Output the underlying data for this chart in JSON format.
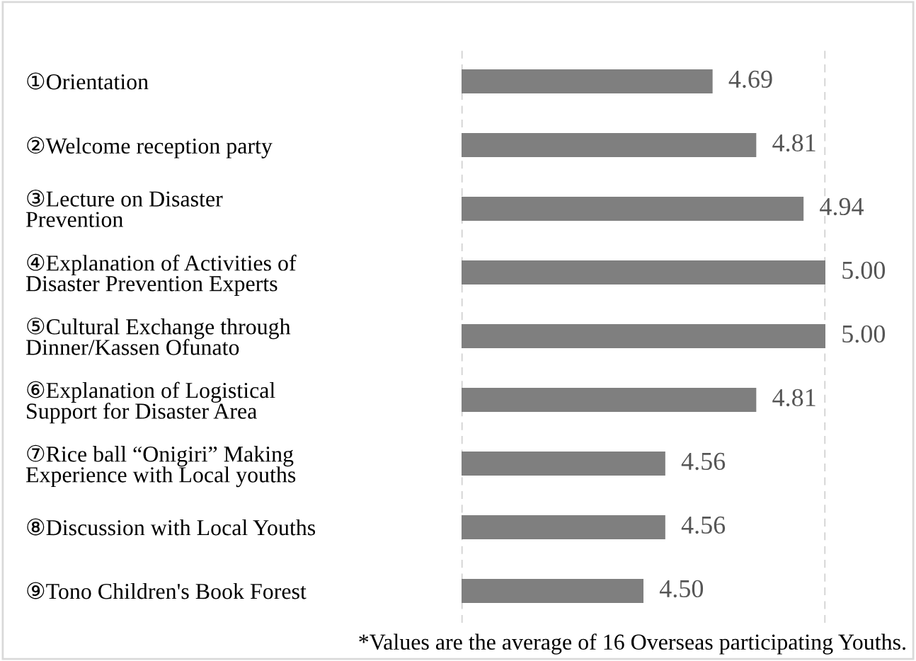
{
  "chart_data": {
    "type": "bar",
    "orientation": "horizontal",
    "categories": [
      "①Orientation",
      "②Welcome reception party",
      "③Lecture on Disaster\nPrevention",
      "④Explanation of Activities of\nDisaster Prevention Experts",
      "⑤Cultural Exchange through\nDinner/Kassen Ofunato",
      "⑥Explanation of Logistical\nSupport for Disaster Area",
      "⑦Rice ball “Onigiri” Making\nExperience with Local youths",
      "⑧Discussion with Local Youths",
      "⑨Tono Children's Book Forest"
    ],
    "values": [
      4.69,
      4.81,
      4.94,
      5.0,
      5.0,
      4.81,
      4.56,
      4.56,
      4.5
    ],
    "color": "#7f7f7f",
    "value_labels": [
      "4.69",
      "4.81",
      "4.94",
      "5.00",
      "5.00",
      "4.81",
      "4.56",
      "4.56",
      "4.50"
    ],
    "xlim": [
      4,
      5
    ],
    "xticks": [
      {
        "value": 4,
        "label": null
      },
      {
        "value": 5,
        "label": null
      }
    ],
    "grid": "x",
    "tick_labels": "y",
    "annotations": [
      "*Values are the average of 16 Overseas participating Youths."
    ]
  }
}
